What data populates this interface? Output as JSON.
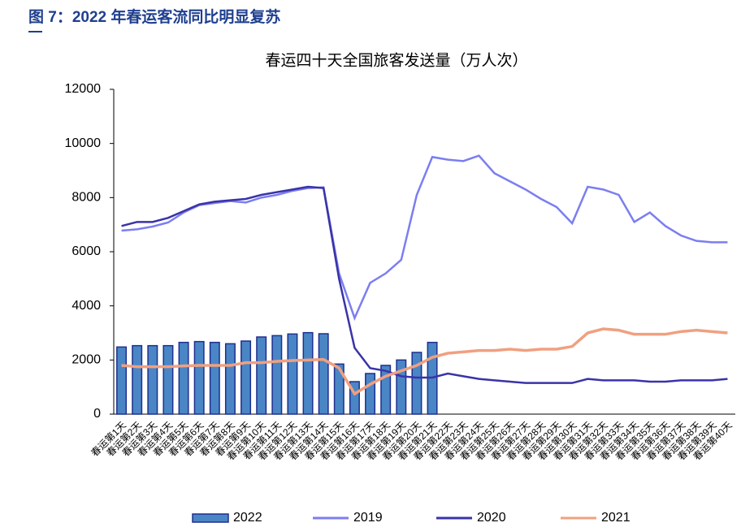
{
  "header": {
    "title": "图 7：2022 年春运客流同比明显复苏"
  },
  "chart_data": {
    "type": "bar",
    "title": "春运四十天全国旅客发送量（万人次）",
    "categories": [
      "春运第1天",
      "春运第2天",
      "春运第3天",
      "春运第4天",
      "春运第5天",
      "春运第6天",
      "春运第7天",
      "春运第8天",
      "春运第9天",
      "春运第10天",
      "春运第11天",
      "春运第12天",
      "春运第13天",
      "春运第14天",
      "春运第15天",
      "春运第16天",
      "春运第17天",
      "春运第18天",
      "春运第19天",
      "春运第20天",
      "春运第21天",
      "春运第22天",
      "春运第23天",
      "春运第24天",
      "春运第25天",
      "春运第26天",
      "春运第27天",
      "春运第28天",
      "春运第29天",
      "春运第30天",
      "春运第31天",
      "春运第32天",
      "春运第33天",
      "春运第34天",
      "春运第35天",
      "春运第36天",
      "春运第37天",
      "春运第38天",
      "春运第39天",
      "春运第40天"
    ],
    "series": [
      {
        "name": "2022",
        "type": "bar",
        "color": "#4a86c5",
        "values": [
          2480,
          2530,
          2530,
          2530,
          2650,
          2680,
          2650,
          2600,
          2700,
          2850,
          2900,
          2960,
          3010,
          2970,
          1850,
          1200,
          1500,
          1800,
          2000,
          2280,
          2650,
          null,
          null,
          null,
          null,
          null,
          null,
          null,
          null,
          null,
          null,
          null,
          null,
          null,
          null,
          null,
          null,
          null,
          null,
          null
        ]
      },
      {
        "name": "2019",
        "type": "line",
        "color": "#7b7ef0",
        "values": [
          6780,
          6830,
          6930,
          7080,
          7450,
          7720,
          7800,
          7870,
          7820,
          8000,
          8100,
          8250,
          8350,
          8380,
          5200,
          3550,
          4850,
          5200,
          5700,
          8100,
          9500,
          9400,
          9350,
          9550,
          8900,
          8600,
          8300,
          7950,
          7650,
          7050,
          8400,
          8300,
          8100,
          7100,
          7450,
          6950,
          6600,
          6400,
          6350,
          6350
        ]
      },
      {
        "name": "2020",
        "type": "line",
        "color": "#3a33a8",
        "values": [
          6950,
          7100,
          7100,
          7250,
          7500,
          7750,
          7850,
          7900,
          7950,
          8100,
          8200,
          8300,
          8400,
          8350,
          5000,
          2450,
          1700,
          1600,
          1400,
          1350,
          1350,
          1500,
          1400,
          1300,
          1250,
          1200,
          1150,
          1150,
          1150,
          1150,
          1300,
          1250,
          1250,
          1250,
          1200,
          1200,
          1250,
          1250,
          1250,
          1300
        ]
      },
      {
        "name": "2021",
        "type": "line",
        "color": "#f0a080",
        "values": [
          1800,
          1750,
          1750,
          1750,
          1780,
          1800,
          1800,
          1800,
          1900,
          1900,
          1950,
          1980,
          2000,
          2020,
          1700,
          750,
          1100,
          1400,
          1600,
          1800,
          2100,
          2250,
          2300,
          2350,
          2350,
          2400,
          2350,
          2400,
          2400,
          2500,
          3000,
          3150,
          3100,
          2950,
          2950,
          2950,
          3050,
          3100,
          3050,
          3000
        ]
      }
    ],
    "ylim": [
      0,
      12000
    ],
    "yticks": [
      0,
      2000,
      4000,
      6000,
      8000,
      10000,
      12000
    ],
    "grid": false
  }
}
